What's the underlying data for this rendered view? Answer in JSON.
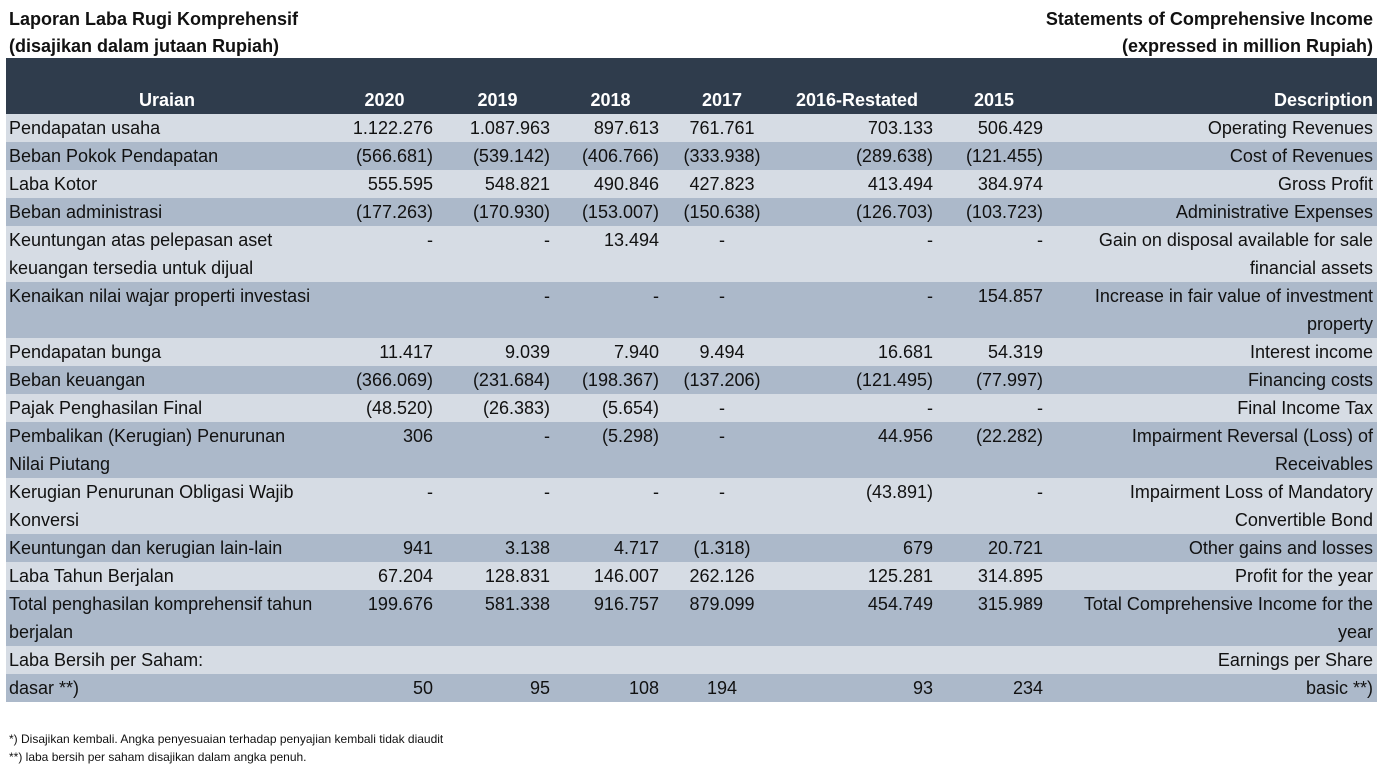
{
  "header": {
    "left_line1": "Laporan Laba Rugi Komprehensif",
    "left_line2": "(disajikan dalam jutaan Rupiah)",
    "right_line1": "Statements of Comprehensive Income",
    "right_line2": "(expressed in million Rupiah)"
  },
  "columns": {
    "label": "Uraian",
    "y2020": "2020",
    "y2019": "2019",
    "y2018": "2018",
    "y2017": "2017",
    "y2016": "2016-Restated",
    "y2015": "2015",
    "desc": "Description"
  },
  "rows": [
    {
      "label": "Pendapatan usaha",
      "v": [
        "1.122.276",
        "1.087.963",
        "897.613",
        "761.761",
        "703.133",
        "506.429"
      ],
      "desc": "Operating Revenues"
    },
    {
      "label": "Beban Pokok Pendapatan",
      "v": [
        "(566.681)",
        "(539.142)",
        "(406.766)",
        "(333.938)",
        "(289.638)",
        "(121.455)"
      ],
      "desc": "Cost of Revenues"
    },
    {
      "label": "Laba Kotor",
      "v": [
        "555.595",
        "548.821",
        "490.846",
        "427.823",
        "413.494",
        "384.974"
      ],
      "desc": "Gross Profit"
    },
    {
      "label": "Beban administrasi",
      "v": [
        "(177.263)",
        "(170.930)",
        "(153.007)",
        "(150.638)",
        "(126.703)",
        "(103.723)"
      ],
      "desc": "Administrative Expenses"
    },
    {
      "label": "Keuntungan atas pelepasan aset keuangan tersedia untuk dijual",
      "v": [
        "-",
        "-",
        "13.494",
        "-",
        "-",
        "-"
      ],
      "desc": "Gain on disposal available for sale financial assets"
    },
    {
      "label": "Kenaikan nilai wajar properti investasi",
      "v": [
        "",
        "-",
        "-",
        "-",
        "-",
        "154.857"
      ],
      "desc": "Increase in fair value of investment property"
    },
    {
      "label": "Pendapatan bunga",
      "v": [
        "11.417",
        "9.039",
        "7.940",
        "9.494",
        "16.681",
        "54.319"
      ],
      "desc": "Interest income"
    },
    {
      "label": "Beban keuangan",
      "v": [
        "(366.069)",
        "(231.684)",
        "(198.367)",
        "(137.206)",
        "(121.495)",
        "(77.997)"
      ],
      "desc": "Financing costs"
    },
    {
      "label": "Pajak Penghasilan Final",
      "v": [
        "(48.520)",
        "(26.383)",
        "(5.654)",
        "-",
        "-",
        "-"
      ],
      "desc": "Final Income Tax"
    },
    {
      "label": "Pembalikan (Kerugian) Penurunan Nilai Piutang",
      "v": [
        "306",
        "-",
        "(5.298)",
        "-",
        "44.956",
        "(22.282)"
      ],
      "desc": "Impairment Reversal (Loss) of Receivables"
    },
    {
      "label": "Kerugian Penurunan Obligasi Wajib Konversi",
      "v": [
        "-",
        "-",
        "-",
        "-",
        "(43.891)",
        "-"
      ],
      "desc": "Impairment Loss of Mandatory Convertible Bond"
    },
    {
      "label": "Keuntungan dan kerugian lain-lain",
      "v": [
        "941",
        "3.138",
        "4.717",
        "(1.318)",
        "679",
        "20.721"
      ],
      "desc": "Other gains and losses"
    },
    {
      "label": "Laba Tahun Berjalan",
      "v": [
        "67.204",
        "128.831",
        "146.007",
        "262.126",
        "125.281",
        "314.895"
      ],
      "desc": "Profit for the year"
    },
    {
      "label": "Total penghasilan komprehensif tahun berjalan",
      "v": [
        "199.676",
        "581.338",
        "916.757",
        "879.099",
        "454.749",
        "315.989"
      ],
      "desc": "Total Comprehensive Income for the year"
    },
    {
      "label": "Laba Bersih per Saham:",
      "v": [
        "",
        "",
        "",
        "",
        "",
        ""
      ],
      "desc": "Earnings per Share"
    },
    {
      "label": "dasar **)",
      "v": [
        "50",
        "95",
        "108",
        "194",
        "93",
        "234"
      ],
      "desc": "basic **)"
    }
  ],
  "footnotes": {
    "note1": "*) Disajikan kembali. Angka penyesuaian terhadap penyajian kembali tidak diaudit",
    "note2": "**) laba bersih per saham disajikan dalam angka penuh."
  },
  "colors": {
    "header_bg": "#2f3c4c",
    "row_light": "#d6dce4",
    "row_dark": "#acb9ca"
  }
}
